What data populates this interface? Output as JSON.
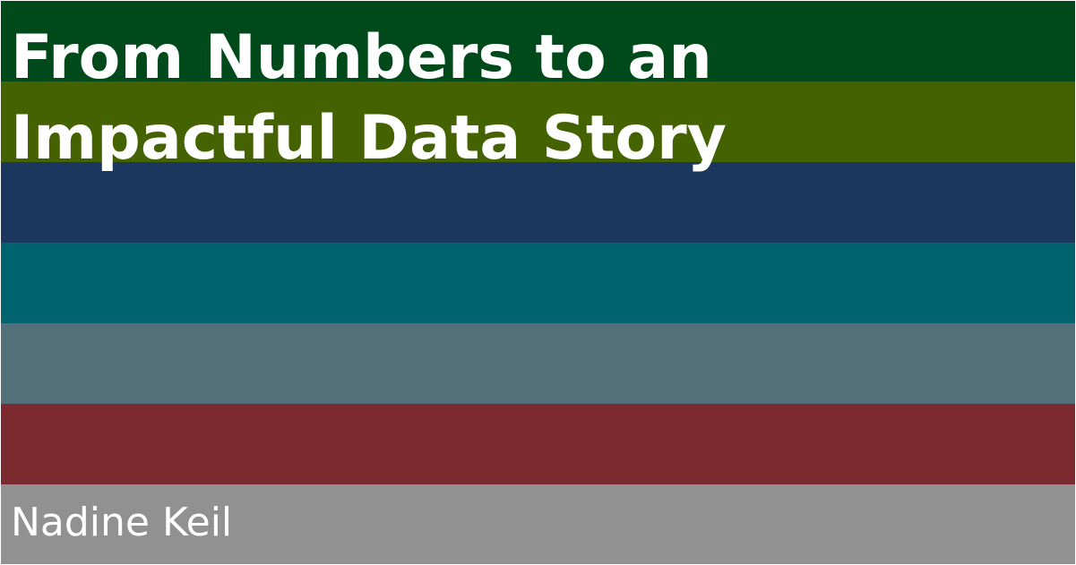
{
  "title": {
    "line1": "From Numbers to an",
    "line2": "Impactful Data Story"
  },
  "author": "Nadine Keil",
  "colors": {
    "stripes": [
      "#00491a",
      "#456200",
      "#1b375e",
      "#00636e",
      "#54707a",
      "#7c2a2f",
      "#919191"
    ],
    "text": "#ffffff"
  }
}
